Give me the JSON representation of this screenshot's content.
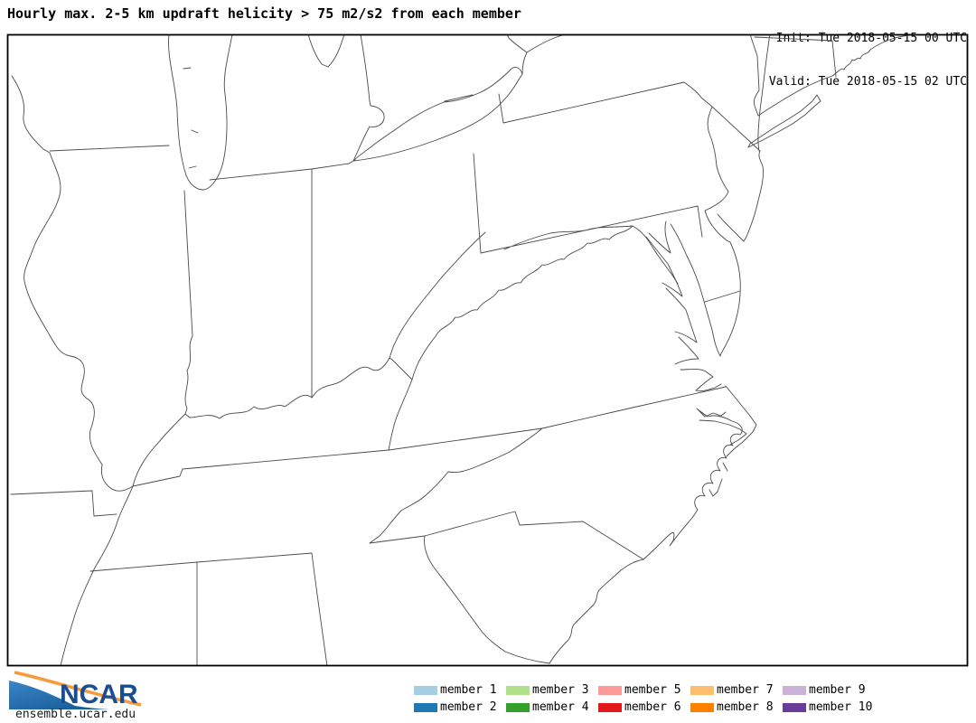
{
  "header": {
    "title": "Hourly max. 2-5 km updraft helicity > 75 m2/s2 from each member",
    "init": "Init: Tue 2018-05-15 00 UTC",
    "valid": "Valid: Tue 2018-05-15 02 UTC"
  },
  "legend": {
    "items": [
      {
        "label": "member 1",
        "color": "#a6cee3"
      },
      {
        "label": "member 2",
        "color": "#1f78b4"
      },
      {
        "label": "member 3",
        "color": "#b2df8a"
      },
      {
        "label": "member 4",
        "color": "#33a02c"
      },
      {
        "label": "member 5",
        "color": "#fb9a99"
      },
      {
        "label": "member 6",
        "color": "#e31a1c"
      },
      {
        "label": "member 7",
        "color": "#fdbf6f"
      },
      {
        "label": "member 8",
        "color": "#ff7f00"
      },
      {
        "label": "member 9",
        "color": "#cab2d6"
      },
      {
        "label": "member 10",
        "color": "#6a3d9a"
      }
    ]
  },
  "branding": {
    "logo_text": "NCAR",
    "site": "ensemble.ucar.edu"
  },
  "map": {
    "frame_color": "#000000",
    "line_color": "#4a4a4a"
  }
}
